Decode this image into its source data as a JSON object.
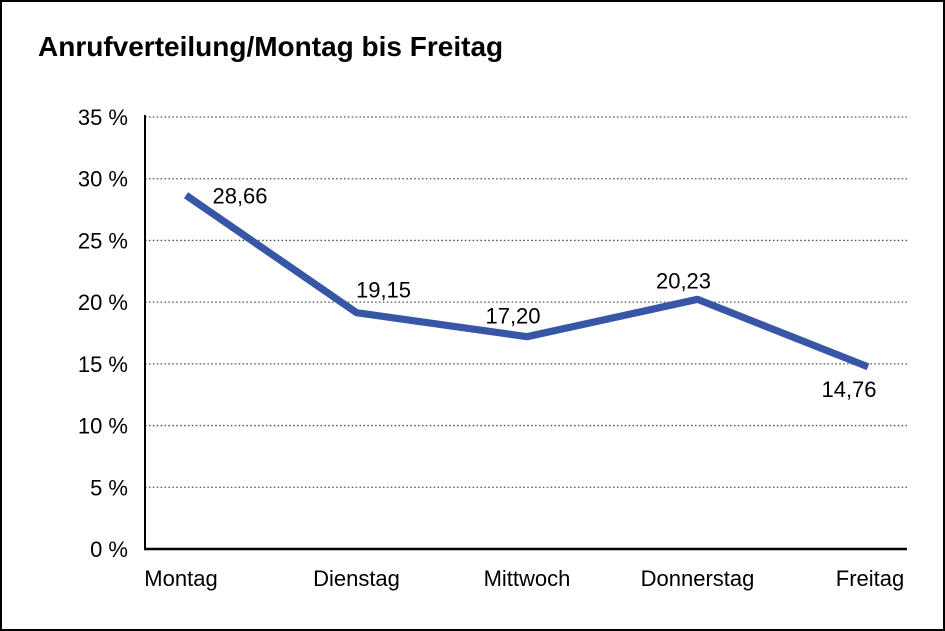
{
  "title": "Anrufverteilung/Montag bis Freitag",
  "colors": {
    "line": "#3856A6",
    "axis": "#000000",
    "grid": "#555555",
    "text": "#000000",
    "background": "#ffffff"
  },
  "chart_data": {
    "type": "line",
    "title": "Anrufverteilung/Montag bis Freitag",
    "categories": [
      "Montag",
      "Dienstag",
      "Mittwoch",
      "Donnerstag",
      "Freitag"
    ],
    "values": [
      28.66,
      19.15,
      17.2,
      20.23,
      14.76
    ],
    "value_labels": [
      "28,66",
      "19,15",
      "17,20",
      "20,23",
      "14,76"
    ],
    "series_name": "Anrufverteilung",
    "xlabel": "",
    "ylabel": "",
    "ylim": [
      0,
      35
    ],
    "ytick_step": 5,
    "ytick_labels": [
      "0 %",
      "5 %",
      "10 %",
      "15 %",
      "20 %",
      "25 %",
      "30 %",
      "35 %"
    ],
    "grid": "horizontal dotted gridlines at every 5 %",
    "legend_position": "none",
    "line_color": "#3856A6",
    "marker": "none"
  }
}
